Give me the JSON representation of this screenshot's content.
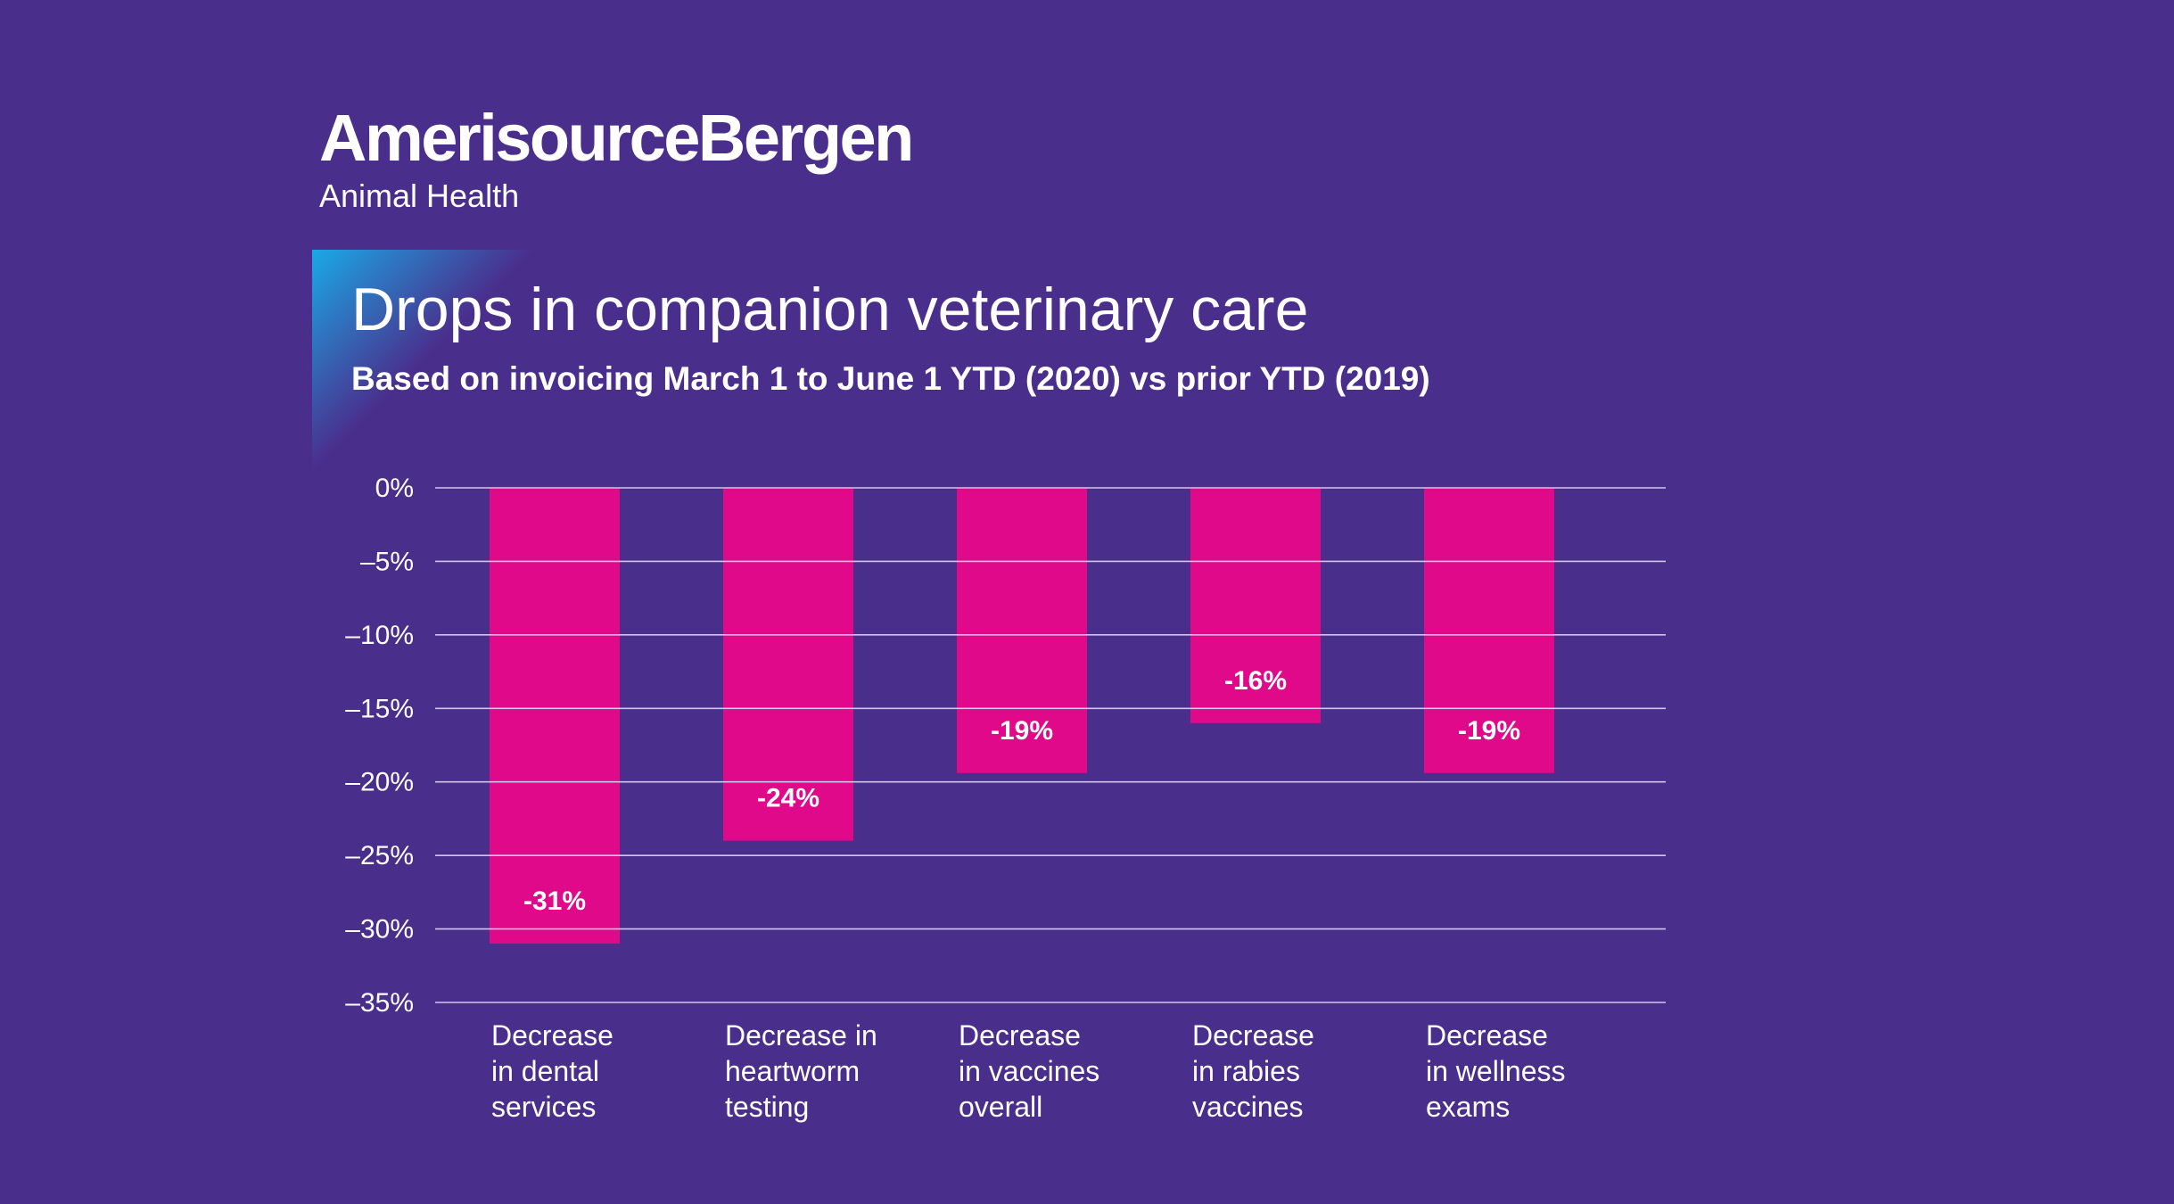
{
  "brand": {
    "name": "AmerisourceBergen",
    "division": "Animal Health"
  },
  "colors": {
    "background": "#4a2e8c",
    "bar": "#e0098a",
    "accent": "#1aa9e6",
    "gridline": "#cfc6e6",
    "text": "#ffffff"
  },
  "chart_data": {
    "type": "bar",
    "title": "Drops in companion veterinary care",
    "subtitle": "Based on invoicing March 1 to June 1 YTD (2020) vs prior YTD (2019)",
    "xlabel": "",
    "ylabel": "",
    "ylim": [
      -35,
      0
    ],
    "yticks": [
      0,
      -5,
      -10,
      -15,
      -20,
      -25,
      -30,
      -35
    ],
    "ytick_labels": [
      "0%",
      "–5%",
      "–10%",
      "–15%",
      "–20%",
      "–25%",
      "–30%",
      "–35%"
    ],
    "grid": true,
    "categories": [
      [
        "Decrease",
        "in dental",
        "services"
      ],
      [
        "Decrease in",
        "heartworm",
        "testing"
      ],
      [
        "Decrease",
        "in vaccines",
        "overall"
      ],
      [
        "Decrease",
        "in rabies",
        "vaccines"
      ],
      [
        "Decrease",
        "in wellness",
        "exams"
      ]
    ],
    "values": [
      -31,
      -24,
      -19.4,
      -16,
      -19.4
    ],
    "value_labels": [
      "-31%",
      "-24%",
      "-19%",
      "-16%",
      "-19%"
    ]
  }
}
